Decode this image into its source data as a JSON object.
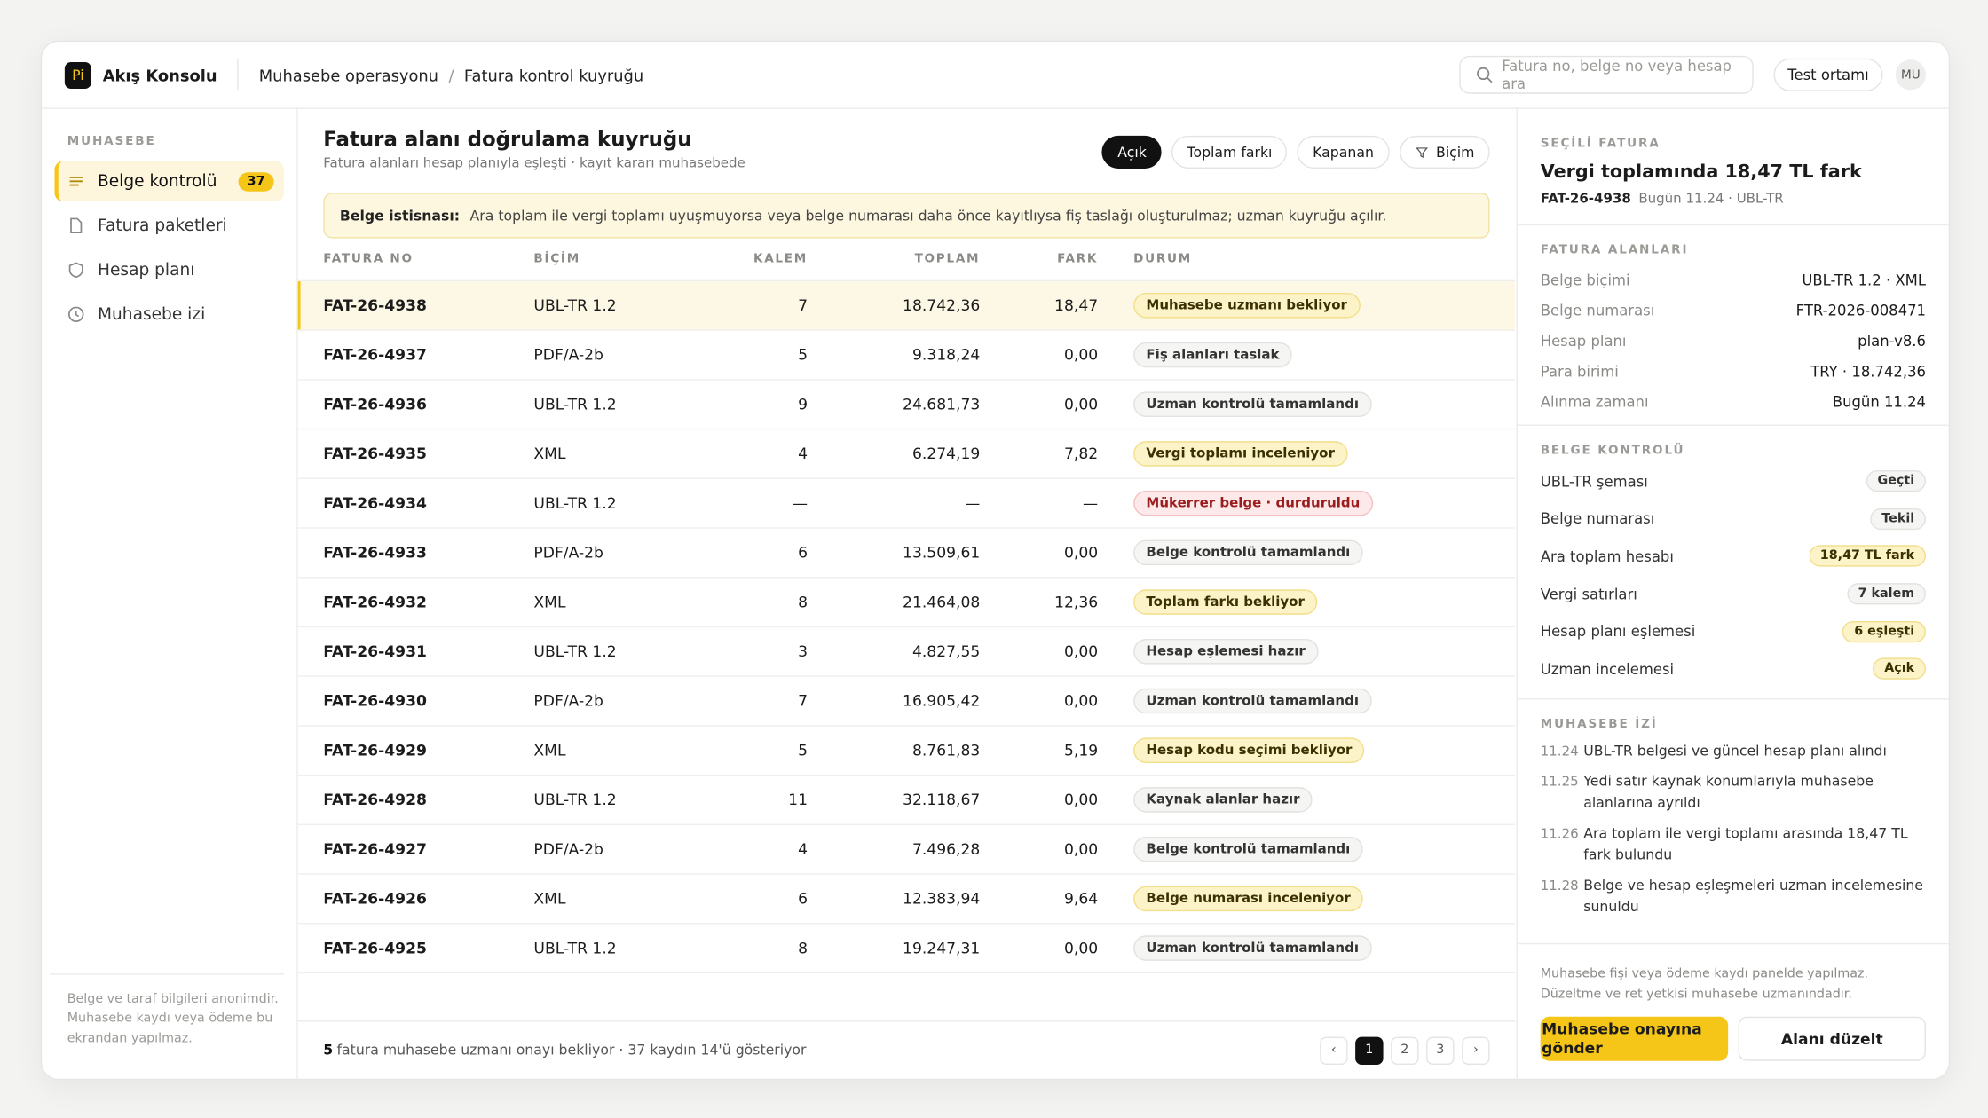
{
  "app": {
    "logo": "Pi",
    "name": "Akış Konsolu"
  },
  "breadcrumb": [
    "Muhasebe operasyonu",
    "/",
    "Fatura kontrol kuyruğu"
  ],
  "search_placeholder": "Fatura no, belge no veya hesap ara",
  "environment": "Test ortamı",
  "user": "MU",
  "sidebar": {
    "section": "MUHASEBE",
    "items": [
      {
        "label": "Belge kontrolü",
        "badge": "37",
        "active": true
      },
      {
        "label": "Fatura paketleri"
      },
      {
        "label": "Hesap planı"
      },
      {
        "label": "Muhasebe izi"
      }
    ],
    "note": "Belge ve taraf bilgileri anonimdir. Muhasebe kaydı veya ödeme bu ekrandan yapılmaz."
  },
  "main": {
    "title": "Fatura alanı doğrulama kuyruğu",
    "subtitle": "Fatura alanları hesap planıyla eşleşti · kayıt kararı muhasebede",
    "filters": [
      "Açık",
      "Toplam farkı",
      "Kapanan",
      "Biçim"
    ],
    "alert": {
      "label": "Belge istisnası:",
      "text": "Ara toplam ile vergi toplamı uyuşmuyorsa veya belge numarası daha önce kayıtlıysa fiş taslağı oluşturulmaz; uzman kuyruğu açılır."
    },
    "table": {
      "columns": [
        "FATURA NO",
        "BİÇİM",
        "KALEM",
        "TOPLAM",
        "FARK",
        "DURUM"
      ],
      "rows": [
        [
          "FAT-26-4938",
          "UBL-TR 1.2",
          "7",
          "18.742,36",
          "18,47",
          "Muhasebe uzmanı bekliyor",
          "warn"
        ],
        [
          "FAT-26-4937",
          "PDF/A-2b",
          "5",
          "9.318,24",
          "0,00",
          "Fiş alanları taslak",
          "neutral"
        ],
        [
          "FAT-26-4936",
          "UBL-TR 1.2",
          "9",
          "24.681,73",
          "0,00",
          "Uzman kontrolü tamamlandı",
          "neutral"
        ],
        [
          "FAT-26-4935",
          "XML",
          "4",
          "6.274,19",
          "7,82",
          "Vergi toplamı inceleniyor",
          "warn"
        ],
        [
          "FAT-26-4934",
          "UBL-TR 1.2",
          "—",
          "—",
          "—",
          "Mükerrer belge · durduruldu",
          "danger"
        ],
        [
          "FAT-26-4933",
          "PDF/A-2b",
          "6",
          "13.509,61",
          "0,00",
          "Belge kontrolü tamamlandı",
          "neutral"
        ],
        [
          "FAT-26-4932",
          "XML",
          "8",
          "21.464,08",
          "12,36",
          "Toplam farkı bekliyor",
          "warn"
        ],
        [
          "FAT-26-4931",
          "UBL-TR 1.2",
          "3",
          "4.827,55",
          "0,00",
          "Hesap eşlemesi hazır",
          "neutral"
        ],
        [
          "FAT-26-4930",
          "PDF/A-2b",
          "7",
          "16.905,42",
          "0,00",
          "Uzman kontrolü tamamlandı",
          "neutral"
        ],
        [
          "FAT-26-4929",
          "XML",
          "5",
          "8.761,83",
          "5,19",
          "Hesap kodu seçimi bekliyor",
          "warn"
        ],
        [
          "FAT-26-4928",
          "UBL-TR 1.2",
          "11",
          "32.118,67",
          "0,00",
          "Kaynak alanlar hazır",
          "neutral"
        ],
        [
          "FAT-26-4927",
          "PDF/A-2b",
          "4",
          "7.496,28",
          "0,00",
          "Belge kontrolü tamamlandı",
          "neutral"
        ],
        [
          "FAT-26-4926",
          "XML",
          "6",
          "12.383,94",
          "9,64",
          "Belge numarası inceleniyor",
          "warn"
        ],
        [
          "FAT-26-4925",
          "UBL-TR 1.2",
          "8",
          "19.247,31",
          "0,00",
          "Uzman kontrolü tamamlandı",
          "neutral"
        ]
      ]
    },
    "footer": {
      "count": "5",
      "text": "fatura muhasebe uzmanı onayı bekliyor · 37 kaydın 14'ü gösteriyor",
      "pages": [
        "‹",
        "1",
        "2",
        "3",
        "›"
      ]
    }
  },
  "detail": {
    "label": "SEÇİLİ FATURA",
    "title": "Vergi toplamında 18,47 TL fark",
    "id": "FAT-26-4938",
    "meta": "Bugün 11.24 · UBL-TR",
    "fields_title": "FATURA ALANLARI",
    "fields": [
      [
        "Belge biçimi",
        "UBL-TR 1.2 · XML"
      ],
      [
        "Belge numarası",
        "FTR-2026-008471"
      ],
      [
        "Hesap planı",
        "plan-v8.6"
      ],
      [
        "Para birimi",
        "TRY · 18.742,36"
      ],
      [
        "Alınma zamanı",
        "Bugün 11.24"
      ]
    ],
    "checks_title": "BELGE KONTROLÜ",
    "checks": [
      [
        "UBL-TR şeması",
        "Geçti",
        "neutral"
      ],
      [
        "Belge numarası",
        "Tekil",
        "neutral"
      ],
      [
        "Ara toplam hesabı",
        "18,47 TL fark",
        "warn"
      ],
      [
        "Vergi satırları",
        "7 kalem",
        "neutral"
      ],
      [
        "Hesap planı eşlemesi",
        "6 eşleşti",
        "warn"
      ],
      [
        "Uzman incelemesi",
        "Açık",
        "warn"
      ]
    ],
    "log_title": "MUHASEBE İZİ",
    "log": [
      [
        "11.24",
        "UBL-TR belgesi ve güncel hesap planı alındı"
      ],
      [
        "11.25",
        "Yedi satır kaynak konumlarıyla muhasebe alanlarına ayrıldı"
      ],
      [
        "11.26",
        "Ara toplam ile vergi toplamı arasında 18,47 TL fark bulundu"
      ],
      [
        "11.28",
        "Belge ve hesap eşleşmeleri uzman incelemesine sunuldu"
      ]
    ],
    "note": "Muhasebe fişi veya ödeme kaydı panelde yapılmaz. Düzeltme ve ret yetkisi muhasebe uzmanındadır.",
    "primary": "Muhasebe onayına gönder",
    "secondary": "Alanı düzelt"
  }
}
